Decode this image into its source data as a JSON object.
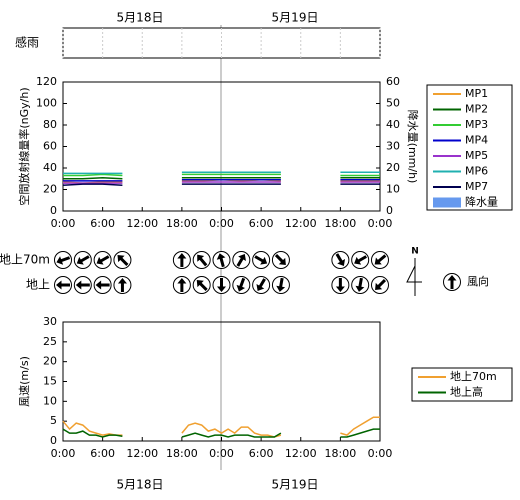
{
  "dates": [
    "5月18日",
    "5月19日"
  ],
  "chart_data": [
    {
      "type": "band",
      "title": "感雨",
      "xlim": [
        0,
        48
      ],
      "xticks": [
        0,
        6,
        12,
        18,
        24,
        30,
        36,
        42,
        48
      ]
    },
    {
      "type": "line",
      "y_label": "空間放射線量率(nGy/h)",
      "y2_label": "降水量(mm/h)",
      "xlim": [
        0,
        48
      ],
      "xticks": [
        {
          "value": 0,
          "label": "0:00"
        },
        {
          "value": 6,
          "label": "6:00"
        },
        {
          "value": 12,
          "label": "12:00"
        },
        {
          "value": 18,
          "label": "18:00"
        },
        {
          "value": 24,
          "label": "0:00"
        },
        {
          "value": 30,
          "label": "6:00"
        },
        {
          "value": 36,
          "label": "12:00"
        },
        {
          "value": 42,
          "label": "18:00"
        },
        {
          "value": 48,
          "label": "0:00"
        }
      ],
      "ylim": [
        0,
        120
      ],
      "yticks": [
        0,
        20,
        40,
        60,
        80,
        100,
        120
      ],
      "y2lim": [
        0,
        60
      ],
      "y2ticks": [
        0,
        10,
        20,
        30,
        40,
        50,
        60
      ],
      "x": [
        0,
        3,
        6,
        9,
        12,
        15,
        18,
        21,
        24,
        27,
        30,
        33,
        36,
        39,
        42,
        45,
        48
      ],
      "series": [
        {
          "name": "MP1",
          "color": "#f0a030",
          "values": [
            27,
            26,
            27,
            27,
            null,
            null,
            28,
            28,
            29,
            28,
            29,
            28,
            null,
            null,
            28,
            28,
            28
          ]
        },
        {
          "name": "MP2",
          "color": "#006400",
          "values": [
            30,
            30,
            31,
            30,
            null,
            null,
            31,
            31,
            31,
            31,
            31,
            31,
            null,
            null,
            31,
            31,
            31
          ]
        },
        {
          "name": "MP3",
          "color": "#33cc33",
          "values": [
            33,
            33,
            34,
            33,
            null,
            null,
            34,
            34,
            34,
            34,
            34,
            34,
            null,
            null,
            33,
            33,
            33
          ]
        },
        {
          "name": "MP4",
          "color": "#0000cc",
          "values": [
            28,
            28,
            28,
            28,
            null,
            null,
            29,
            29,
            29,
            29,
            29,
            29,
            null,
            null,
            29,
            29,
            29
          ]
        },
        {
          "name": "MP5",
          "color": "#9933cc",
          "values": [
            26,
            26,
            26,
            26,
            null,
            null,
            27,
            27,
            27,
            27,
            27,
            27,
            null,
            null,
            27,
            27,
            27
          ]
        },
        {
          "name": "MP6",
          "color": "#20b0b0",
          "values": [
            35,
            35,
            35,
            35,
            null,
            null,
            36,
            36,
            36,
            36,
            36,
            36,
            null,
            null,
            36,
            36,
            36
          ]
        },
        {
          "name": "MP7",
          "color": "#000050",
          "values": [
            24,
            25,
            25,
            24,
            null,
            null,
            25,
            25,
            25,
            25,
            25,
            25,
            null,
            null,
            25,
            25,
            25
          ]
        },
        {
          "name": "降水量",
          "color": "#6699ee",
          "axis": "y2",
          "type": "bar",
          "values": [
            null,
            null,
            null,
            null,
            null,
            null,
            null,
            null,
            null,
            null,
            null,
            null,
            null,
            null,
            null,
            null,
            null
          ]
        }
      ]
    },
    {
      "type": "wind-direction",
      "legend": "風向",
      "compass": "N",
      "xlim": [
        0,
        48
      ],
      "x": [
        0,
        3,
        6,
        9,
        18,
        21,
        24,
        27,
        30,
        33,
        42,
        45,
        48
      ],
      "rows": [
        {
          "name": "地上70m",
          "values": [
            250,
            240,
            240,
            315,
            0,
            320,
            345,
            30,
            120,
            135,
            150,
            240,
            230
          ]
        },
        {
          "name": "地上",
          "values": [
            270,
            270,
            270,
            0,
            0,
            315,
            180,
            200,
            210,
            190,
            180,
            190,
            225
          ]
        }
      ]
    },
    {
      "type": "line",
      "y_label": "風速(m/s)",
      "xlim": [
        0,
        48
      ],
      "xticks": [
        {
          "value": 0,
          "label": "0:00"
        },
        {
          "value": 6,
          "label": "6:00"
        },
        {
          "value": 12,
          "label": "12:00"
        },
        {
          "value": 18,
          "label": "18:00"
        },
        {
          "value": 24,
          "label": "0:00"
        },
        {
          "value": 30,
          "label": "6:00"
        },
        {
          "value": 36,
          "label": "12:00"
        },
        {
          "value": 42,
          "label": "18:00"
        },
        {
          "value": 48,
          "label": "0:00"
        }
      ],
      "ylim": [
        0,
        30
      ],
      "yticks": [
        0,
        5,
        10,
        15,
        20,
        25,
        30
      ],
      "x": [
        0,
        1,
        2,
        3,
        4,
        5,
        6,
        7,
        8,
        9,
        10,
        11,
        12,
        13,
        14,
        15,
        16,
        17,
        18,
        19,
        20,
        21,
        22,
        23,
        24,
        25,
        26,
        27,
        28,
        29,
        30,
        31,
        32,
        33,
        34,
        35,
        36,
        37,
        38,
        39,
        40,
        41,
        42,
        43,
        44,
        45,
        46,
        47,
        48
      ],
      "series": [
        {
          "name": "地上70m",
          "color": "#f0a030",
          "values": [
            5,
            3,
            4.5,
            4,
            2.5,
            2,
            1.5,
            1.8,
            1.5,
            1.5,
            null,
            null,
            null,
            null,
            null,
            null,
            null,
            null,
            2,
            4,
            4.5,
            4,
            2.5,
            3,
            2,
            3,
            2,
            3.5,
            3.5,
            2,
            1.5,
            1.5,
            1,
            1.5,
            null,
            null,
            null,
            null,
            null,
            null,
            null,
            null,
            2,
            1.5,
            3,
            4,
            5,
            6,
            6
          ]
        },
        {
          "name": "地上高",
          "color": "#006400",
          "values": [
            3,
            2,
            2,
            2.5,
            1.5,
            1.5,
            1,
            1.5,
            1.5,
            1.2,
            null,
            null,
            null,
            null,
            null,
            null,
            null,
            null,
            1,
            1.5,
            2,
            1.5,
            1,
            1.5,
            1.5,
            1,
            1.5,
            1.5,
            1.5,
            1,
            1,
            1,
            1,
            2,
            null,
            null,
            null,
            null,
            null,
            null,
            null,
            null,
            1,
            1,
            1.5,
            2,
            2.5,
            3,
            3
          ]
        }
      ]
    }
  ]
}
